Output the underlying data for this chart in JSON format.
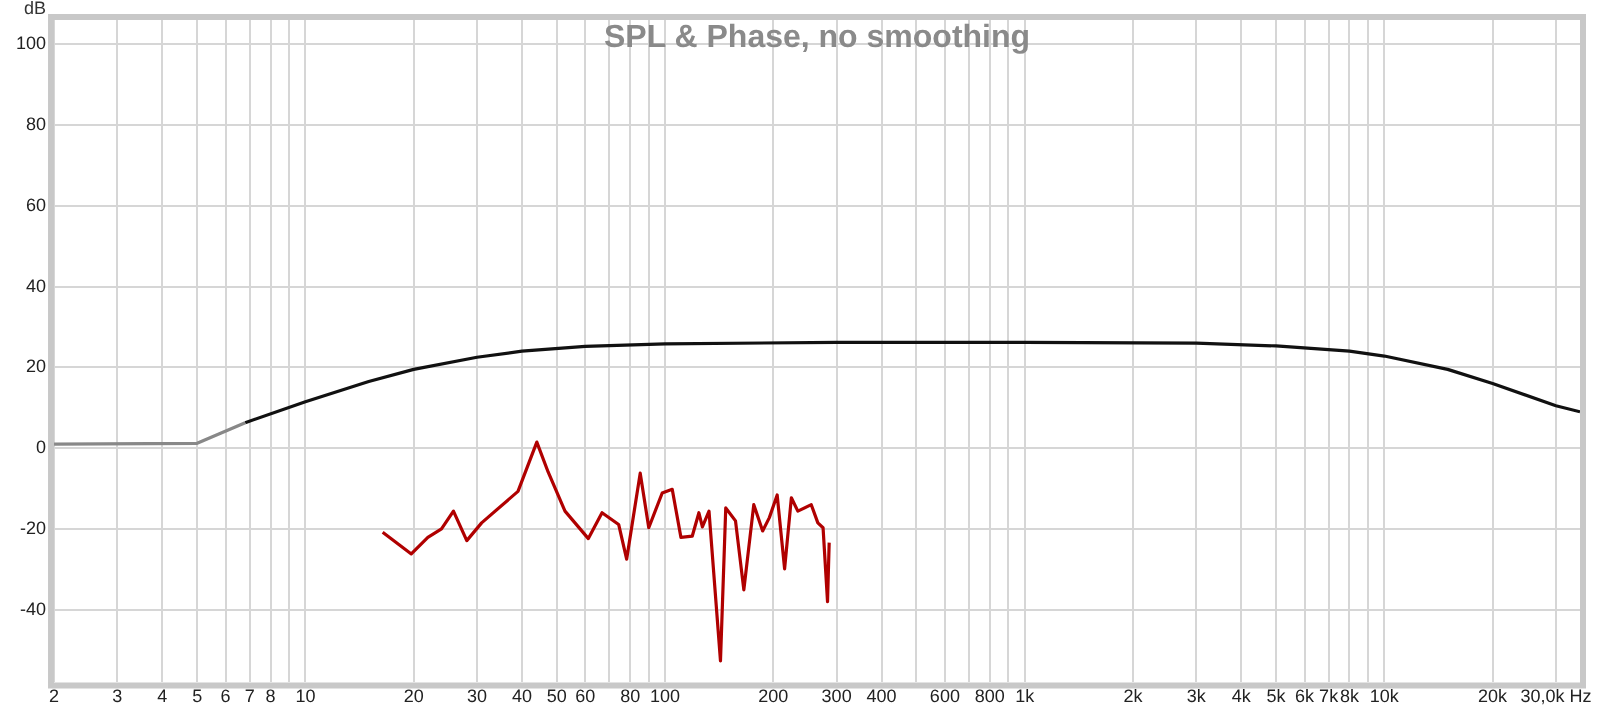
{
  "chart_data": {
    "type": "line",
    "title": "SPL & Phase, no smoothing",
    "ylabel": "dB",
    "log": "x",
    "grid": true,
    "marker": "none",
    "xlim": [
      2,
      35000
    ],
    "ylim": [
      -58,
      106
    ],
    "xticks": [
      2,
      3,
      4,
      5,
      6,
      7,
      8,
      {
        "value": 9,
        "label": null
      },
      10,
      20,
      30,
      40,
      50,
      60,
      {
        "value": 70,
        "label": null
      },
      80,
      {
        "value": 90,
        "label": null
      },
      100,
      200,
      300,
      400,
      {
        "value": 500,
        "label": null
      },
      600,
      {
        "value": 700,
        "label": null
      },
      800,
      {
        "value": 900,
        "label": null
      },
      {
        "value": 1000,
        "label": "1k"
      },
      {
        "value": 2000,
        "label": "2k"
      },
      {
        "value": 3000,
        "label": "3k"
      },
      {
        "value": 4000,
        "label": "4k"
      },
      {
        "value": 5000,
        "label": "5k"
      },
      {
        "value": 6000,
        "label": "6k"
      },
      {
        "value": 7000,
        "label": "7k"
      },
      {
        "value": 8000,
        "label": "8k"
      },
      {
        "value": 9000,
        "label": null
      },
      {
        "value": 10000,
        "label": "10k"
      },
      {
        "value": 20000,
        "label": "20k"
      },
      {
        "value": 30000,
        "label": "30,0k Hz"
      }
    ],
    "yticks": [
      -40,
      -20,
      0,
      20,
      40,
      60,
      80,
      100
    ],
    "series": [
      {
        "color": "#888888",
        "x": [
          2,
          5,
          6.8
        ],
        "values": [
          1,
          1.2,
          6.3
        ]
      },
      {
        "color": "#111111",
        "x": [
          6.8,
          10,
          15,
          20,
          30,
          40,
          60,
          100,
          300,
          1000,
          3000,
          5000,
          8000,
          10000,
          15000,
          20000,
          30000,
          35000
        ],
        "values": [
          6.3,
          11.5,
          16.5,
          19.5,
          22.5,
          24,
          25.2,
          25.8,
          26.2,
          26.2,
          26,
          25.3,
          24,
          22.8,
          19.5,
          16,
          10.5,
          9
        ]
      },
      {
        "color": "#b00000",
        "x": [
          16.4,
          19.7,
          21.9,
          23.9,
          25.8,
          28.1,
          30.9,
          39,
          44,
          47.3,
          52.7,
          61.2,
          66.8,
          74.3,
          78.2,
          85.3,
          90.1,
          98.2,
          104.7,
          110.7,
          119,
          124.2,
          127,
          132.5,
          142.6,
          147.5,
          157,
          165.6,
          176.5,
          186.8,
          195,
          205,
          215,
          224.5,
          234,
          255,
          266,
          275,
          283,
          286
        ],
        "values": [
          -20.8,
          -26.2,
          -22.1,
          -20,
          -15.6,
          -22.9,
          -18.5,
          -10.7,
          1.5,
          -5.9,
          -15.6,
          -22.4,
          -16,
          -18.9,
          -27.5,
          -6.2,
          -19.7,
          -11.1,
          -10.2,
          -22.1,
          -21.8,
          -16,
          -19.5,
          -15.6,
          -52.7,
          -14.8,
          -18,
          -35.1,
          -14,
          -20.5,
          -17.2,
          -11.6,
          -29.9,
          -12.3,
          -15.6,
          -14,
          -18.5,
          -19.7,
          -38,
          -23.4
        ]
      }
    ]
  }
}
